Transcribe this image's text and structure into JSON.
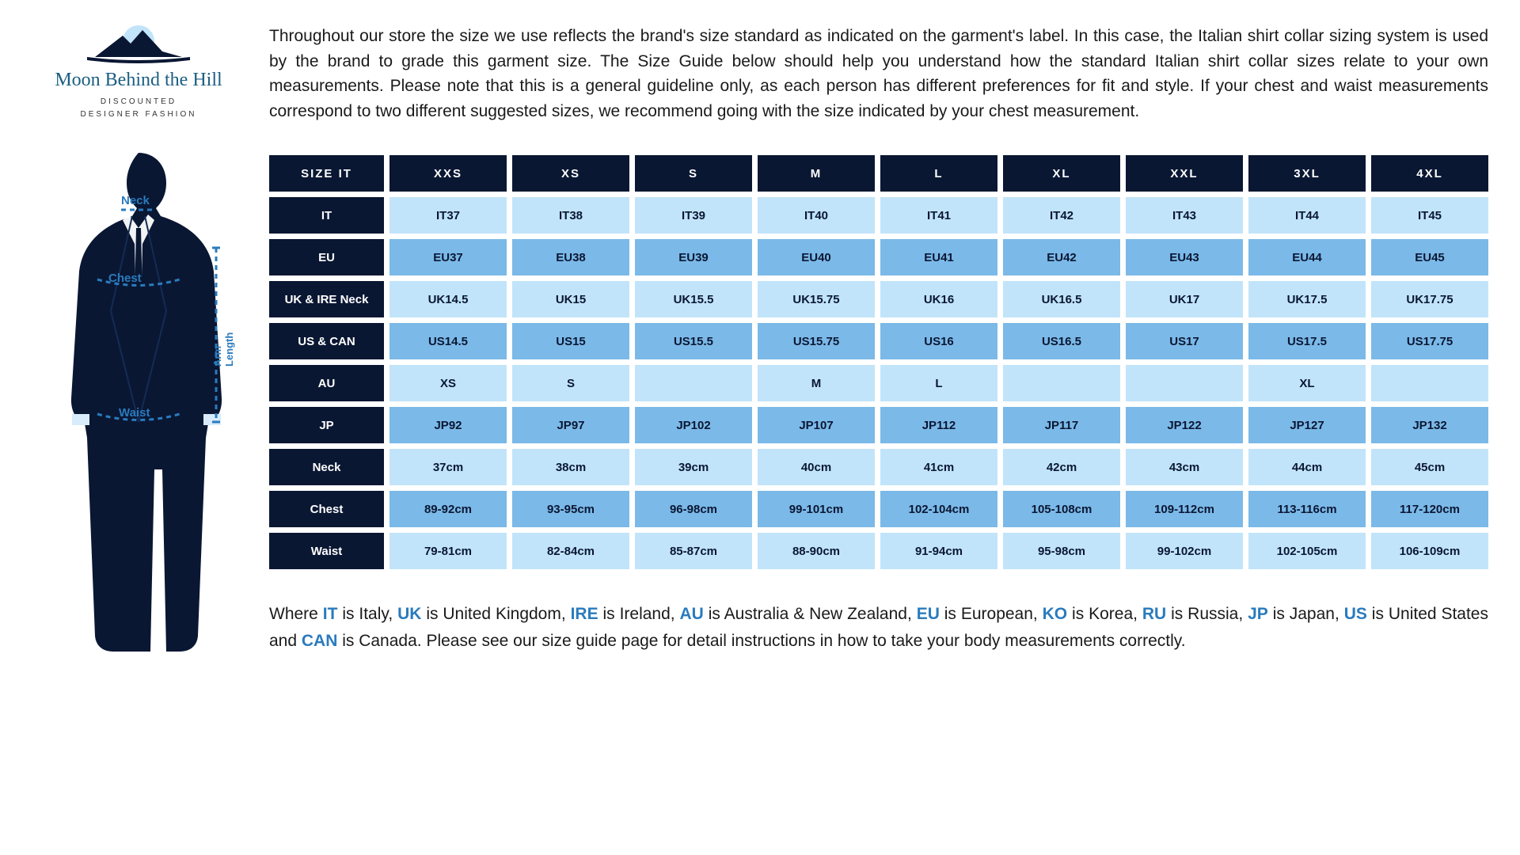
{
  "logo": {
    "brand_name": "Moon Behind the Hill",
    "tagline_line1": "DISCOUNTED",
    "tagline_line2": "DESIGNER FASHION",
    "mountain_fill": "#0a1733",
    "moon_fill": "#c1e4fa"
  },
  "silhouette": {
    "fill_color": "#0a1733",
    "guide_color": "#2a7bbd",
    "labels": {
      "neck": "Neck",
      "chest": "Chest",
      "waist": "Waist",
      "arm": "Arm Length"
    }
  },
  "intro": "Throughout our store the size we use reflects the brand's size standard as indicated on the garment's label. In this case, the Italian shirt collar sizing system is used by the brand to grade this garment size. The Size Guide below should help you understand how the standard Italian shirt collar sizes relate to your own measurements. Please note that this is a general guideline only, as each person has different preferences for fit and style. If your chest and waist measurements correspond to two different suggested sizes, we recommend going with the size indicated by your chest measurement.",
  "table": {
    "header_bg": "#0a1733",
    "header_fg": "#ffffff",
    "light_bg": "#c1e4fa",
    "mid_bg": "#7bb9e8",
    "cell_fg": "#0a1733",
    "size_label": "SIZE IT",
    "columns": [
      "XXS",
      "XS",
      "S",
      "M",
      "L",
      "XL",
      "XXL",
      "3XL",
      "4XL"
    ],
    "rows": [
      {
        "label": "IT",
        "shade": "light",
        "cells": [
          "IT37",
          "IT38",
          "IT39",
          "IT40",
          "IT41",
          "IT42",
          "IT43",
          "IT44",
          "IT45"
        ]
      },
      {
        "label": "EU",
        "shade": "mid",
        "cells": [
          "EU37",
          "EU38",
          "EU39",
          "EU40",
          "EU41",
          "EU42",
          "EU43",
          "EU44",
          "EU45"
        ]
      },
      {
        "label": "UK & IRE Neck",
        "shade": "light",
        "cells": [
          "UK14.5",
          "UK15",
          "UK15.5",
          "UK15.75",
          "UK16",
          "UK16.5",
          "UK17",
          "UK17.5",
          "UK17.75"
        ]
      },
      {
        "label": "US & CAN",
        "shade": "mid",
        "cells": [
          "US14.5",
          "US15",
          "US15.5",
          "US15.75",
          "US16",
          "US16.5",
          "US17",
          "US17.5",
          "US17.75"
        ]
      },
      {
        "label": "AU",
        "shade": "light",
        "cells": [
          "XS",
          "S",
          "",
          "M",
          "L",
          "",
          "",
          "XL",
          ""
        ]
      },
      {
        "label": "JP",
        "shade": "mid",
        "cells": [
          "JP92",
          "JP97",
          "JP102",
          "JP107",
          "JP112",
          "JP117",
          "JP122",
          "JP127",
          "JP132"
        ]
      },
      {
        "label": "Neck",
        "shade": "light",
        "cells": [
          "37cm",
          "38cm",
          "39cm",
          "40cm",
          "41cm",
          "42cm",
          "43cm",
          "44cm",
          "45cm"
        ]
      },
      {
        "label": "Chest",
        "shade": "mid",
        "cells": [
          "89-92cm",
          "93-95cm",
          "96-98cm",
          "99-101cm",
          "102-104cm",
          "105-108cm",
          "109-112cm",
          "113-116cm",
          "117-120cm"
        ]
      },
      {
        "label": "Waist",
        "shade": "light",
        "cells": [
          "79-81cm",
          "82-84cm",
          "85-87cm",
          "88-90cm",
          "91-94cm",
          "95-98cm",
          "99-102cm",
          "102-105cm",
          "106-109cm"
        ]
      }
    ]
  },
  "legend": {
    "parts": [
      {
        "t": "Where "
      },
      {
        "c": "IT"
      },
      {
        "t": " is Italy, "
      },
      {
        "c": "UK"
      },
      {
        "t": " is United Kingdom, "
      },
      {
        "c": "IRE"
      },
      {
        "t": " is Ireland, "
      },
      {
        "c": "AU"
      },
      {
        "t": " is Australia & New Zealand, "
      },
      {
        "c": "EU"
      },
      {
        "t": " is European, "
      },
      {
        "c": "KO"
      },
      {
        "t": " is Korea, "
      },
      {
        "c": "RU"
      },
      {
        "t": " is Russia, "
      },
      {
        "c": "JP"
      },
      {
        "t": " is Japan, "
      },
      {
        "c": "US"
      },
      {
        "t": " is United States and "
      },
      {
        "c": "CAN"
      },
      {
        "t": " is Canada. Please see our size guide page for detail instructions in how to take your body measurements correctly."
      }
    ]
  }
}
